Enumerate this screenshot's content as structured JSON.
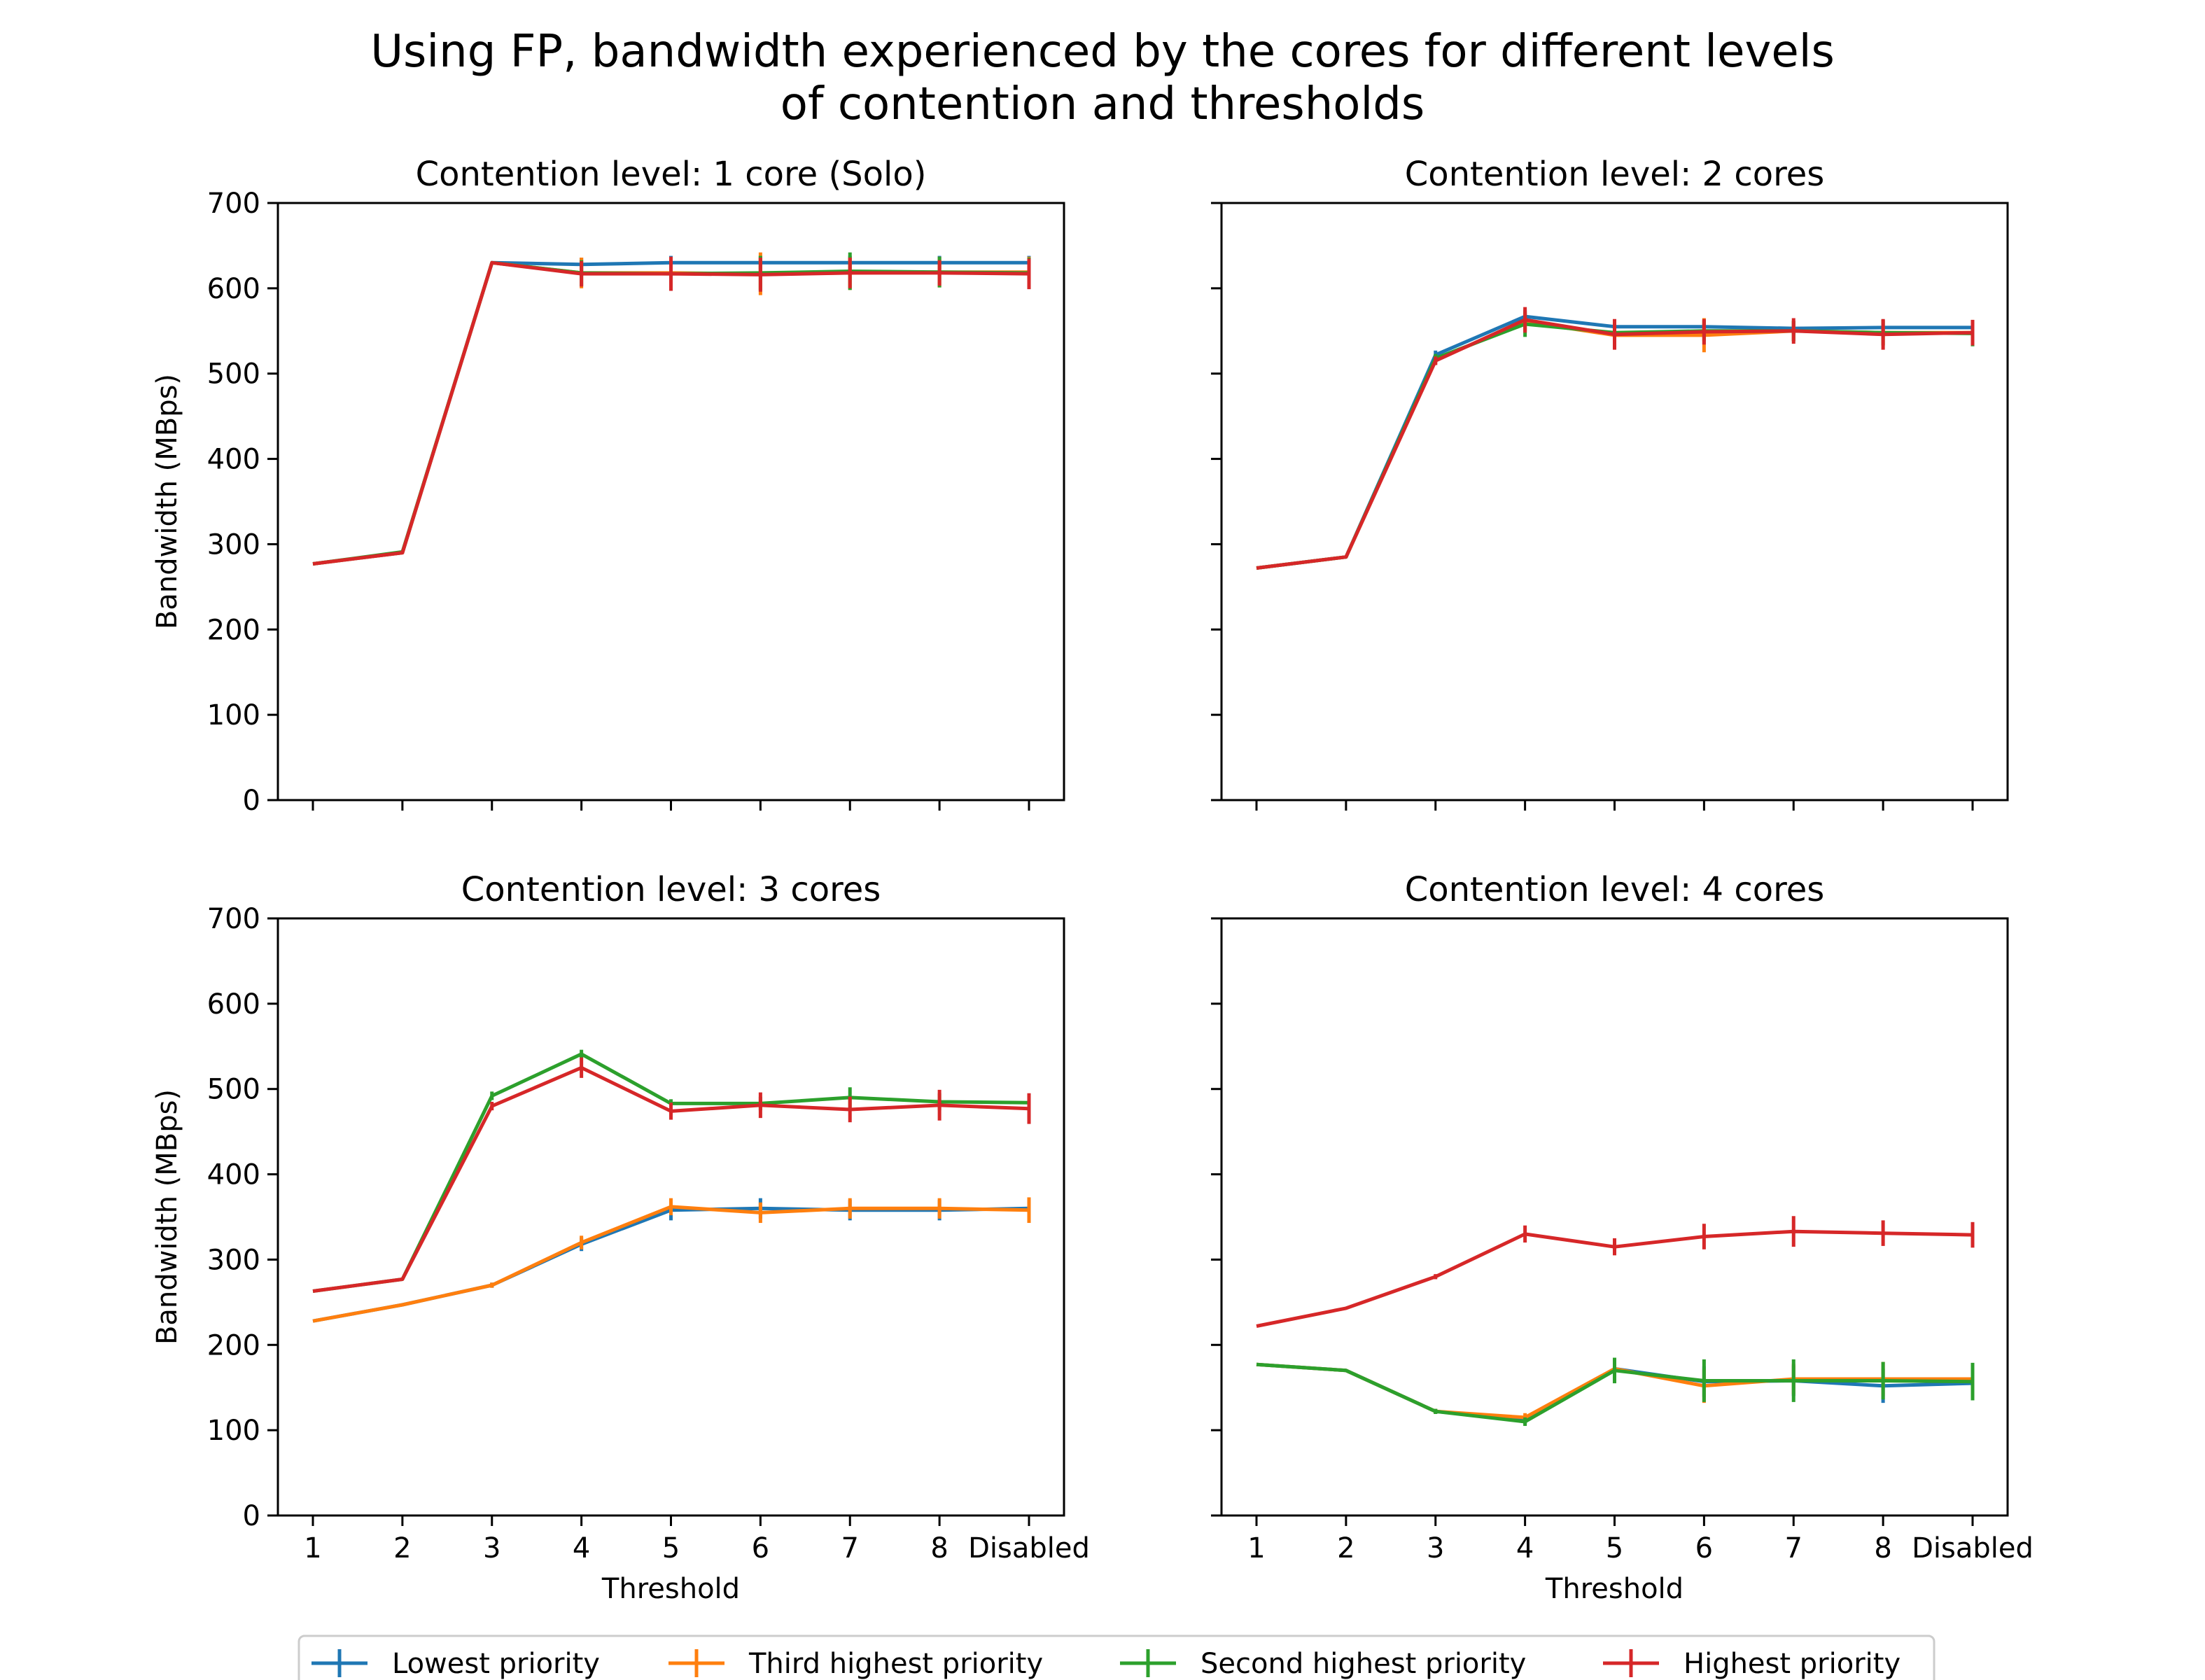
{
  "figure": {
    "title_line1": "Using FP, bandwidth experienced by the cores for different levels",
    "title_line2": "of contention and thresholds"
  },
  "legend": {
    "placement": "bottom-center",
    "entries": [
      "Lowest priority",
      "Third highest priority",
      "Second highest priority",
      "Highest priority"
    ]
  },
  "colors": {
    "Lowest priority": "#1f77b4",
    "Third highest priority": "#ff7f0e",
    "Second highest priority": "#2ca02c",
    "Highest priority": "#d62728"
  },
  "chart_data": [
    {
      "type": "line",
      "title": "Contention level: 1 core (Solo)",
      "xlabel": "",
      "ylabel": "Bandwidth (MBps)",
      "categories": [
        "1",
        "2",
        "3",
        "4",
        "5",
        "6",
        "7",
        "8",
        "Disabled"
      ],
      "show_x_ticklabels": false,
      "show_y_ticklabels": true,
      "ylim": [
        0,
        700
      ],
      "yticks": [
        0,
        100,
        200,
        300,
        400,
        500,
        600,
        700
      ],
      "series": [
        {
          "name": "Lowest priority",
          "values": [
            277,
            290,
            630,
            628,
            630,
            630,
            630,
            630,
            630
          ],
          "errors": [
            0,
            0,
            0,
            8,
            8,
            8,
            8,
            8,
            8
          ]
        },
        {
          "name": "Third highest priority",
          "values": [
            277,
            290,
            630,
            618,
            618,
            617,
            618,
            619,
            619
          ],
          "errors": [
            0,
            0,
            0,
            18,
            18,
            25,
            20,
            18,
            18
          ]
        },
        {
          "name": "Second highest priority",
          "values": [
            277,
            291,
            630,
            618,
            617,
            618,
            620,
            619,
            618
          ],
          "errors": [
            0,
            0,
            0,
            15,
            18,
            20,
            22,
            18,
            18
          ]
        },
        {
          "name": "Highest priority",
          "values": [
            277,
            290,
            630,
            617,
            617,
            616,
            618,
            618,
            617
          ],
          "errors": [
            0,
            0,
            0,
            15,
            20,
            20,
            18,
            15,
            18
          ]
        }
      ]
    },
    {
      "type": "line",
      "title": "Contention level: 2 cores",
      "xlabel": "",
      "ylabel": "",
      "categories": [
        "1",
        "2",
        "3",
        "4",
        "5",
        "6",
        "7",
        "8",
        "Disabled"
      ],
      "show_x_ticklabels": false,
      "show_y_ticklabels": false,
      "ylim": [
        0,
        700
      ],
      "yticks": [
        0,
        100,
        200,
        300,
        400,
        500,
        600,
        700
      ],
      "series": [
        {
          "name": "Lowest priority",
          "values": [
            272,
            285,
            522,
            567,
            555,
            555,
            553,
            554,
            554
          ],
          "errors": [
            0,
            0,
            5,
            8,
            8,
            8,
            8,
            8,
            8
          ]
        },
        {
          "name": "Third highest priority",
          "values": [
            272,
            285,
            516,
            561,
            545,
            545,
            550,
            548,
            548
          ],
          "errors": [
            0,
            0,
            5,
            10,
            15,
            20,
            12,
            15,
            15
          ]
        },
        {
          "name": "Second highest priority",
          "values": [
            272,
            285,
            518,
            558,
            548,
            550,
            550,
            548,
            547
          ],
          "errors": [
            0,
            0,
            5,
            15,
            15,
            12,
            12,
            15,
            15
          ]
        },
        {
          "name": "Highest priority",
          "values": [
            272,
            285,
            515,
            563,
            546,
            549,
            550,
            546,
            548
          ],
          "errors": [
            0,
            0,
            5,
            15,
            18,
            15,
            15,
            18,
            15
          ]
        }
      ]
    },
    {
      "type": "line",
      "title": "Contention level: 3 cores",
      "xlabel": "Threshold",
      "ylabel": "Bandwidth (MBps)",
      "categories": [
        "1",
        "2",
        "3",
        "4",
        "5",
        "6",
        "7",
        "8",
        "Disabled"
      ],
      "show_x_ticklabels": true,
      "show_y_ticklabels": true,
      "ylim": [
        0,
        700
      ],
      "yticks": [
        0,
        100,
        200,
        300,
        400,
        500,
        600,
        700
      ],
      "series": [
        {
          "name": "Lowest priority",
          "values": [
            228,
            247,
            270,
            318,
            358,
            360,
            358,
            358,
            360
          ],
          "errors": [
            0,
            0,
            3,
            8,
            12,
            12,
            12,
            12,
            12
          ]
        },
        {
          "name": "Third highest priority",
          "values": [
            228,
            247,
            270,
            320,
            362,
            355,
            360,
            360,
            358
          ],
          "errors": [
            0,
            0,
            3,
            8,
            10,
            12,
            12,
            12,
            15
          ]
        },
        {
          "name": "Second highest priority",
          "values": [
            263,
            277,
            492,
            541,
            483,
            483,
            490,
            485,
            484
          ],
          "errors": [
            0,
            0,
            5,
            5,
            5,
            8,
            12,
            10,
            10
          ]
        },
        {
          "name": "Highest priority",
          "values": [
            263,
            277,
            480,
            525,
            474,
            481,
            476,
            481,
            477
          ],
          "errors": [
            0,
            0,
            5,
            12,
            10,
            15,
            15,
            18,
            18
          ]
        }
      ]
    },
    {
      "type": "line",
      "title": "Contention level: 4 cores",
      "xlabel": "Threshold",
      "ylabel": "",
      "categories": [
        "1",
        "2",
        "3",
        "4",
        "5",
        "6",
        "7",
        "8",
        "Disabled"
      ],
      "show_x_ticklabels": true,
      "show_y_ticklabels": false,
      "ylim": [
        0,
        700
      ],
      "yticks": [
        0,
        100,
        200,
        300,
        400,
        500,
        600,
        700
      ],
      "series": [
        {
          "name": "Lowest priority",
          "values": [
            177,
            170,
            122,
            112,
            172,
            157,
            158,
            152,
            155
          ],
          "errors": [
            0,
            0,
            3,
            5,
            10,
            18,
            18,
            20,
            18
          ]
        },
        {
          "name": "Third highest priority",
          "values": [
            177,
            170,
            122,
            115,
            172,
            152,
            160,
            160,
            160
          ],
          "errors": [
            0,
            0,
            3,
            5,
            10,
            20,
            18,
            20,
            18
          ]
        },
        {
          "name": "Second highest priority",
          "values": [
            177,
            170,
            122,
            110,
            170,
            158,
            158,
            158,
            157
          ],
          "errors": [
            0,
            0,
            3,
            5,
            15,
            25,
            25,
            22,
            22
          ]
        },
        {
          "name": "Highest priority",
          "values": [
            222,
            243,
            280,
            330,
            315,
            327,
            333,
            331,
            329
          ],
          "errors": [
            0,
            0,
            3,
            10,
            10,
            15,
            18,
            15,
            15
          ]
        }
      ]
    }
  ]
}
